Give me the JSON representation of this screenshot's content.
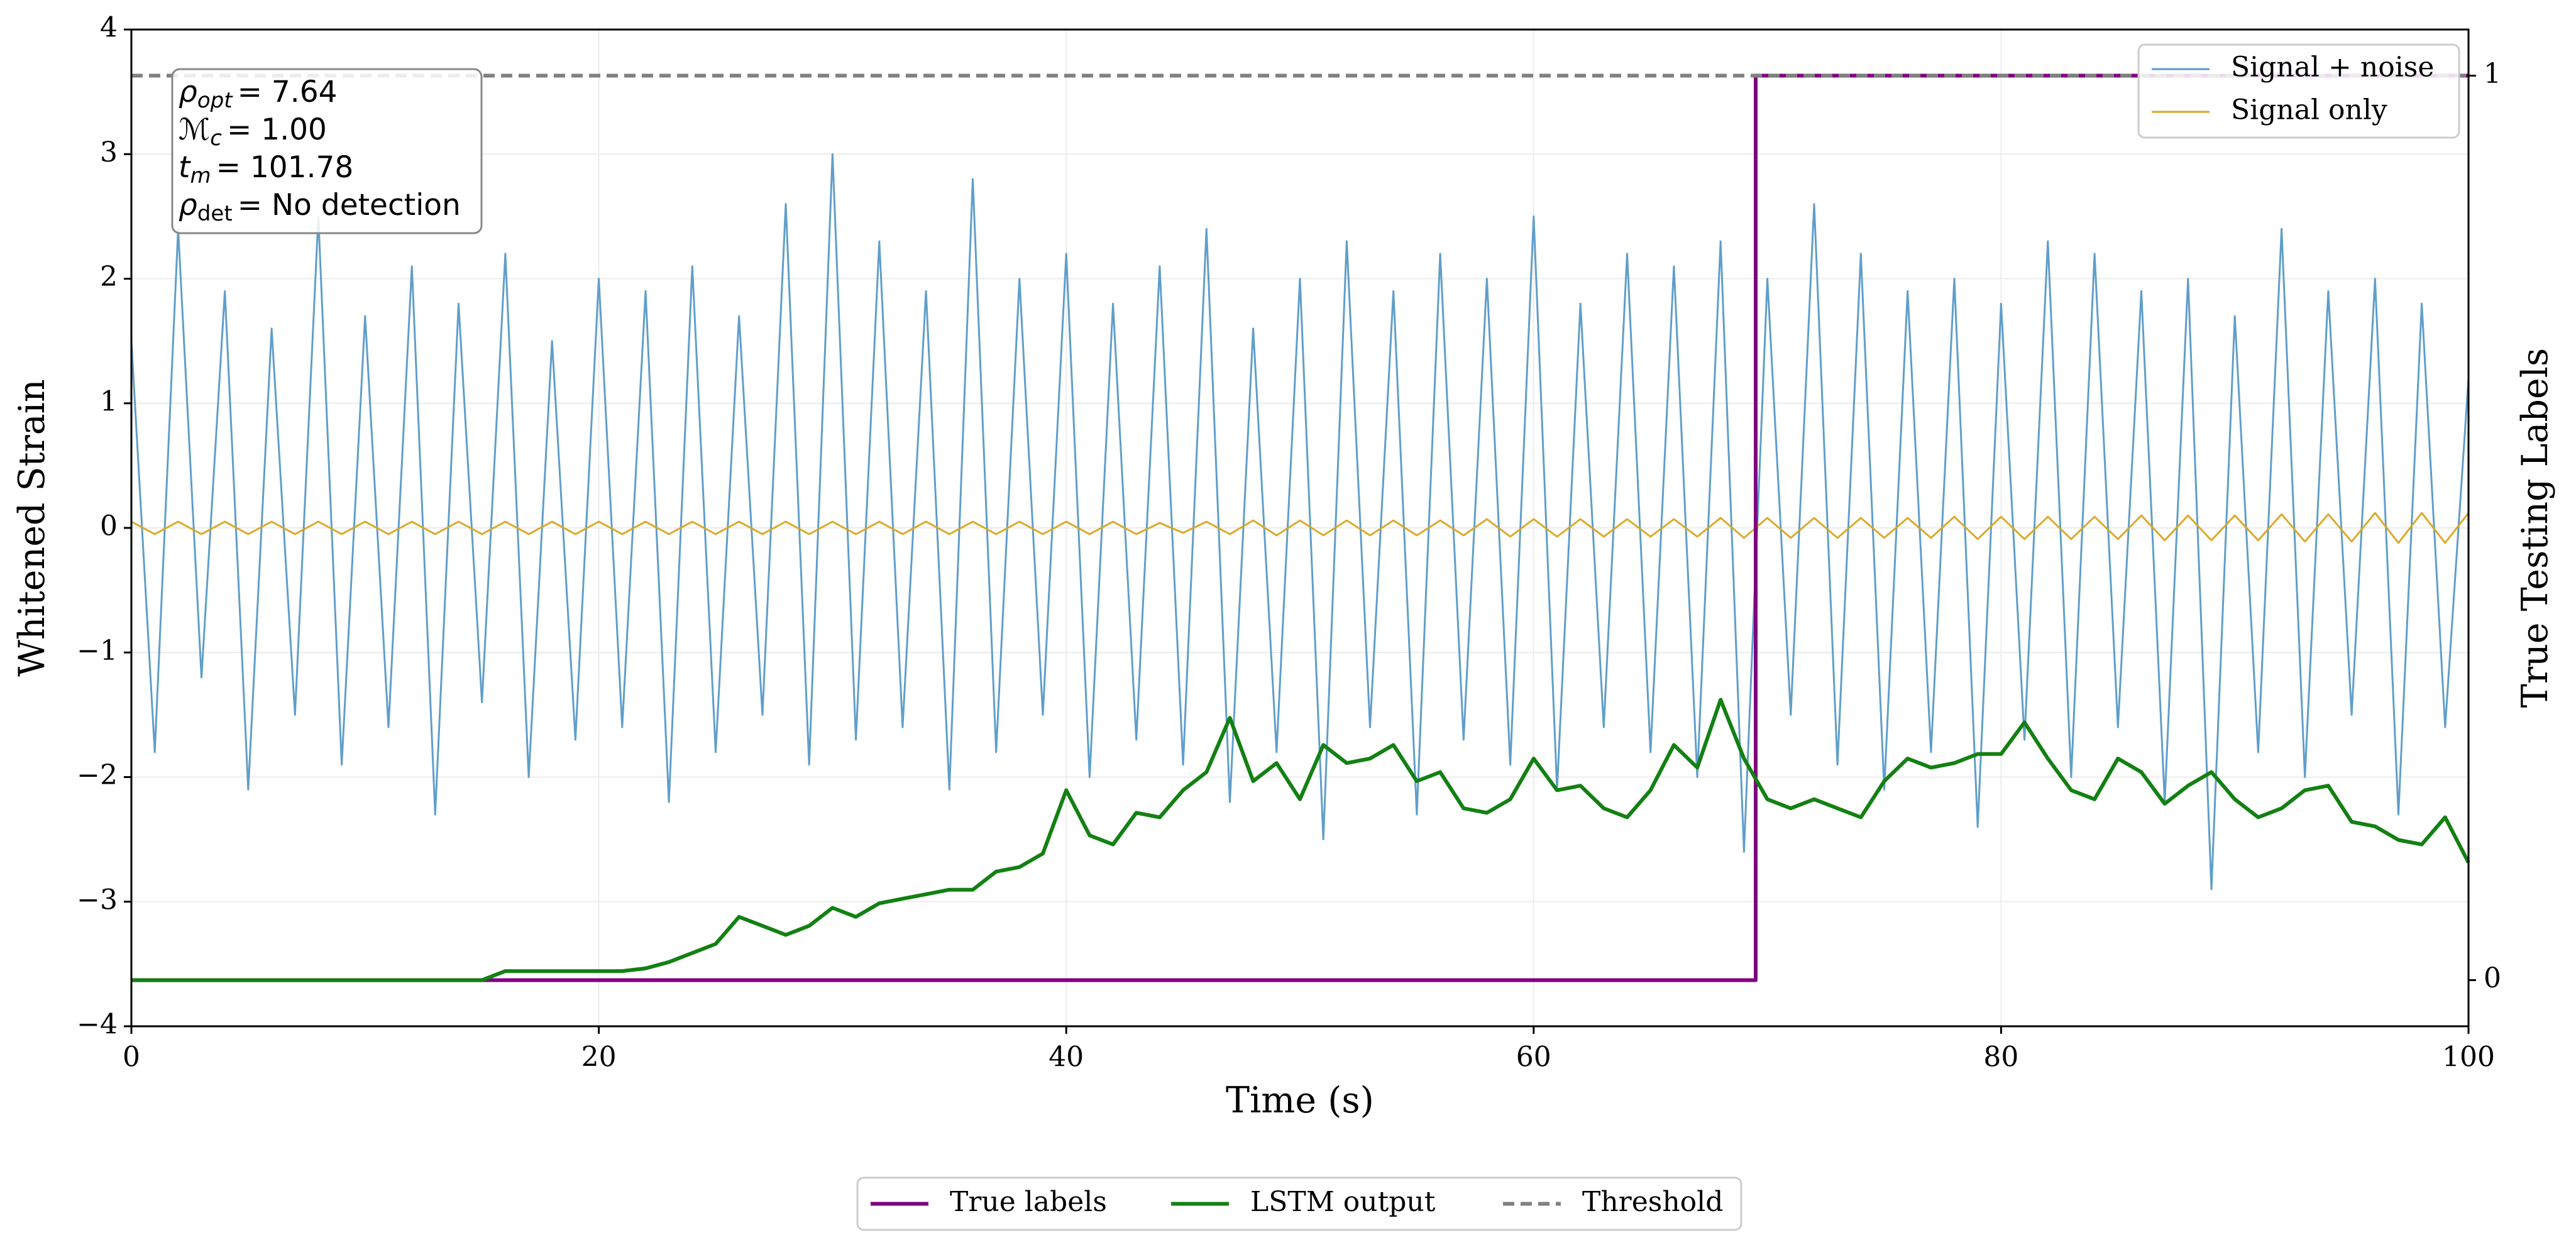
{
  "chart_data": {
    "type": "line",
    "xlabel": "Time (s)",
    "ylabel": "Whitened Strain",
    "y2label": "True Testing Labels",
    "xlim": [
      0,
      100
    ],
    "xticks": [
      0,
      20,
      40,
      60,
      80,
      100
    ],
    "ylim": [
      -4,
      4
    ],
    "yticks": [
      {
        "value": -4,
        "label": "−4"
      },
      {
        "value": -3,
        "label": "−3"
      },
      {
        "value": -2,
        "label": "−2"
      },
      {
        "value": -1,
        "label": "−1"
      },
      0,
      1,
      2,
      3,
      4
    ],
    "y2lim": [
      -0.051,
      1.051
    ],
    "y2ticks": [
      0,
      1
    ],
    "grid": true,
    "legend": "upper right",
    "y2_legend": "lower center",
    "annotations": [
      {
        "symbol": "ρ",
        "sub": "opt",
        "text": "= 7.64"
      },
      {
        "symbol": "ℳ",
        "sub": "c",
        "text": "= 1.00"
      },
      {
        "symbol": "t",
        "sub": "m",
        "text": "= 101.78"
      },
      {
        "symbol": "ρ",
        "sub": "det",
        "text": "= No detection"
      }
    ],
    "x": [
      0,
      1,
      2,
      3,
      4,
      5,
      6,
      7,
      8,
      9,
      10,
      11,
      12,
      13,
      14,
      15,
      16,
      17,
      18,
      19,
      20,
      21,
      22,
      23,
      24,
      25,
      26,
      27,
      28,
      29,
      30,
      31,
      32,
      33,
      34,
      35,
      36,
      37,
      38,
      39,
      40,
      41,
      42,
      43,
      44,
      45,
      46,
      47,
      48,
      49,
      50,
      51,
      52,
      53,
      54,
      55,
      56,
      57,
      58,
      59,
      60,
      61,
      62,
      63,
      64,
      65,
      66,
      67,
      68,
      69,
      70,
      71,
      72,
      73,
      74,
      75,
      76,
      77,
      78,
      79,
      80,
      81,
      82,
      83,
      84,
      85,
      86,
      87,
      88,
      89,
      90,
      91,
      92,
      93,
      94,
      95,
      96,
      97,
      98,
      99,
      100
    ],
    "series": [
      {
        "name": "Signal + noise",
        "color": "#5799c7",
        "values": [
          1.5,
          -1.8,
          2.4,
          -1.2,
          1.9,
          -2.1,
          1.6,
          -1.5,
          2.5,
          -1.9,
          1.7,
          -1.6,
          2.1,
          -2.3,
          1.8,
          -1.4,
          2.2,
          -2.0,
          1.5,
          -1.7,
          2.0,
          -1.6,
          1.9,
          -2.2,
          2.1,
          -1.8,
          1.7,
          -1.5,
          2.6,
          -1.9,
          3.0,
          -1.7,
          2.3,
          -1.6,
          1.9,
          -2.1,
          2.8,
          -1.8,
          2.0,
          -1.5,
          2.2,
          -2.0,
          1.8,
          -1.7,
          2.1,
          -1.9,
          2.4,
          -2.2,
          1.6,
          -1.8,
          2.0,
          -2.5,
          2.3,
          -1.6,
          1.9,
          -2.3,
          2.2,
          -1.7,
          2.0,
          -1.9,
          2.5,
          -2.1,
          1.8,
          -1.6,
          2.2,
          -1.8,
          2.1,
          -2.0,
          2.3,
          -2.6,
          2.0,
          -1.5,
          2.6,
          -1.9,
          2.2,
          -2.1,
          1.9,
          -1.8,
          2.0,
          -2.4,
          1.8,
          -1.7,
          2.3,
          -2.0,
          2.2,
          -1.6,
          1.9,
          -2.2,
          2.0,
          -2.9,
          1.7,
          -1.8,
          2.4,
          -2.0,
          1.9,
          -1.5,
          2.0,
          -2.3,
          1.8,
          -1.6,
          1.2
        ]
      },
      {
        "name": "Signal only",
        "color": "#daa520",
        "values": [
          0.05,
          -0.05,
          0.05,
          -0.05,
          0.05,
          -0.05,
          0.05,
          -0.05,
          0.05,
          -0.05,
          0.05,
          -0.05,
          0.05,
          -0.05,
          0.05,
          -0.05,
          0.05,
          -0.05,
          0.05,
          -0.05,
          0.05,
          -0.05,
          0.05,
          -0.05,
          0.05,
          -0.05,
          0.05,
          -0.05,
          0.05,
          -0.05,
          0.05,
          -0.05,
          0.05,
          -0.05,
          0.05,
          -0.05,
          0.05,
          -0.05,
          0.05,
          -0.05,
          0.05,
          -0.05,
          0.05,
          -0.05,
          0.04,
          -0.04,
          0.05,
          -0.05,
          0.06,
          -0.06,
          0.06,
          -0.06,
          0.06,
          -0.06,
          0.06,
          -0.06,
          0.06,
          -0.06,
          0.07,
          -0.07,
          0.07,
          -0.07,
          0.07,
          -0.07,
          0.07,
          -0.07,
          0.07,
          -0.07,
          0.08,
          -0.08,
          0.08,
          -0.08,
          0.08,
          -0.08,
          0.08,
          -0.08,
          0.08,
          -0.08,
          0.09,
          -0.09,
          0.09,
          -0.09,
          0.09,
          -0.09,
          0.09,
          -0.09,
          0.1,
          -0.1,
          0.1,
          -0.1,
          0.1,
          -0.1,
          0.11,
          -0.11,
          0.11,
          -0.11,
          0.12,
          -0.12,
          0.12,
          -0.12,
          0.12
        ]
      },
      {
        "name": "True labels",
        "color": "#800080",
        "axis": "y2",
        "x": [
          0,
          69.5,
          69.5,
          100
        ],
        "values": [
          0,
          0,
          1,
          1
        ]
      },
      {
        "name": "LSTM output",
        "color": "#138013",
        "axis": "y2",
        "values": [
          0,
          0,
          0,
          0,
          0,
          0,
          0,
          0,
          0,
          0,
          0,
          0,
          0,
          0,
          0,
          0,
          0.01,
          0.01,
          0.01,
          0.01,
          0.01,
          0.01,
          0.013,
          0.02,
          0.03,
          0.04,
          0.07,
          0.06,
          0.05,
          0.06,
          0.08,
          0.07,
          0.085,
          0.09,
          0.095,
          0.1,
          0.1,
          0.12,
          0.125,
          0.14,
          0.21,
          0.16,
          0.15,
          0.185,
          0.18,
          0.21,
          0.23,
          0.29,
          0.22,
          0.24,
          0.2,
          0.26,
          0.24,
          0.245,
          0.26,
          0.22,
          0.23,
          0.19,
          0.185,
          0.2,
          0.245,
          0.21,
          0.215,
          0.19,
          0.18,
          0.21,
          0.26,
          0.235,
          0.31,
          0.245,
          0.2,
          0.19,
          0.2,
          0.19,
          0.18,
          0.22,
          0.245,
          0.235,
          0.24,
          0.25,
          0.25,
          0.285,
          0.245,
          0.21,
          0.2,
          0.245,
          0.23,
          0.195,
          0.215,
          0.23,
          0.2,
          0.18,
          0.19,
          0.21,
          0.215,
          0.175,
          0.17,
          0.155,
          0.15,
          0.18,
          0.13
        ]
      },
      {
        "name": "Threshold",
        "color": "#808080",
        "axis": "y2",
        "dash": true,
        "x": [
          0,
          100
        ],
        "values": [
          1,
          1
        ]
      }
    ]
  }
}
